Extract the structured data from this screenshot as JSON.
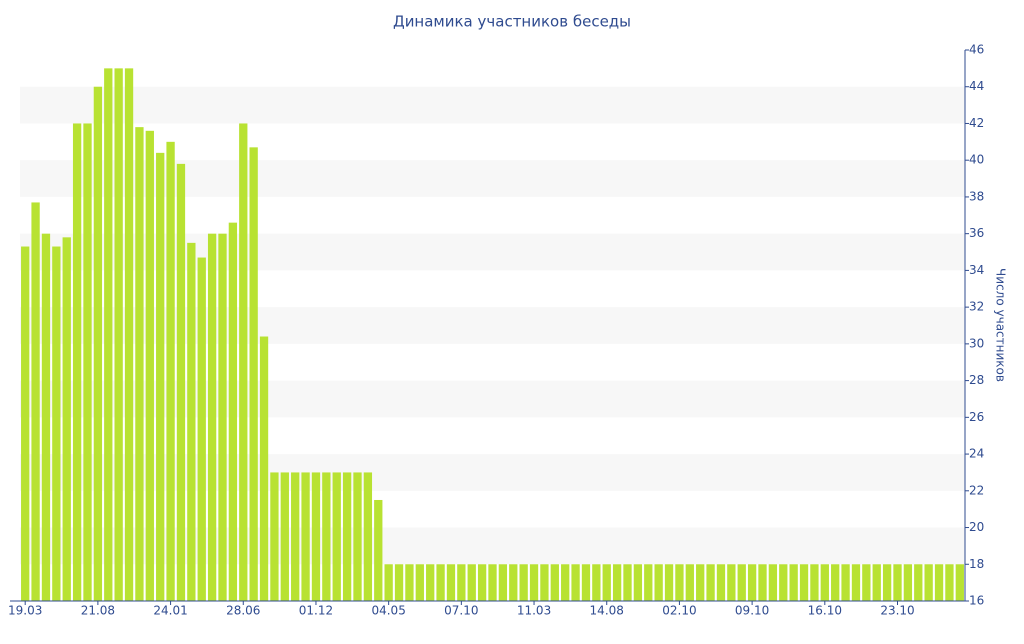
{
  "chart_data": {
    "type": "bar",
    "title": "Динамика участников беседы",
    "y_label": "Число участников",
    "categories": [
      "19.03",
      null,
      null,
      null,
      null,
      null,
      null,
      "21.08",
      null,
      null,
      null,
      null,
      null,
      null,
      "24.01",
      null,
      null,
      null,
      null,
      null,
      null,
      "28.06",
      null,
      null,
      null,
      null,
      null,
      null,
      "01.12",
      null,
      null,
      null,
      null,
      null,
      null,
      "04.05",
      null,
      null,
      null,
      null,
      null,
      null,
      "07.10",
      null,
      null,
      null,
      null,
      null,
      null,
      "11.03",
      null,
      null,
      null,
      null,
      null,
      null,
      "14.08",
      null,
      null,
      null,
      null,
      null,
      null,
      "02.10",
      null,
      null,
      null,
      null,
      null,
      null,
      "09.10",
      null,
      null,
      null,
      null,
      null,
      null,
      "16.10",
      null,
      null,
      null,
      null,
      null,
      null,
      "23.10",
      null,
      null,
      null,
      null,
      null,
      null
    ],
    "values": [
      35.3,
      37.7,
      36,
      35.3,
      35.8,
      42,
      42,
      44,
      45,
      45,
      45,
      41.8,
      41.6,
      40.4,
      41,
      39.8,
      35.5,
      34.7,
      36,
      36,
      36.6,
      42,
      40.7,
      30.4,
      23,
      23,
      23,
      23,
      23,
      23,
      23,
      23,
      23,
      23,
      21.5,
      18,
      18,
      18,
      18,
      18,
      18,
      18,
      18,
      18,
      18,
      18,
      18,
      18,
      18,
      18,
      18,
      18,
      18,
      18,
      18,
      18,
      18,
      18,
      18,
      18,
      18,
      18,
      18,
      18,
      18,
      18,
      18,
      18,
      18,
      18,
      18,
      18,
      18,
      18,
      18,
      18,
      18,
      18,
      18,
      18,
      18,
      18,
      18,
      18,
      18,
      18,
      18,
      18,
      18,
      18,
      18
    ],
    "color": "#b8e232",
    "ylim": [
      16,
      46
    ],
    "yticks": [
      16,
      18,
      20,
      22,
      24,
      26,
      28,
      30,
      32,
      34,
      36,
      38,
      40,
      42,
      44,
      46
    ],
    "grid": true
  }
}
